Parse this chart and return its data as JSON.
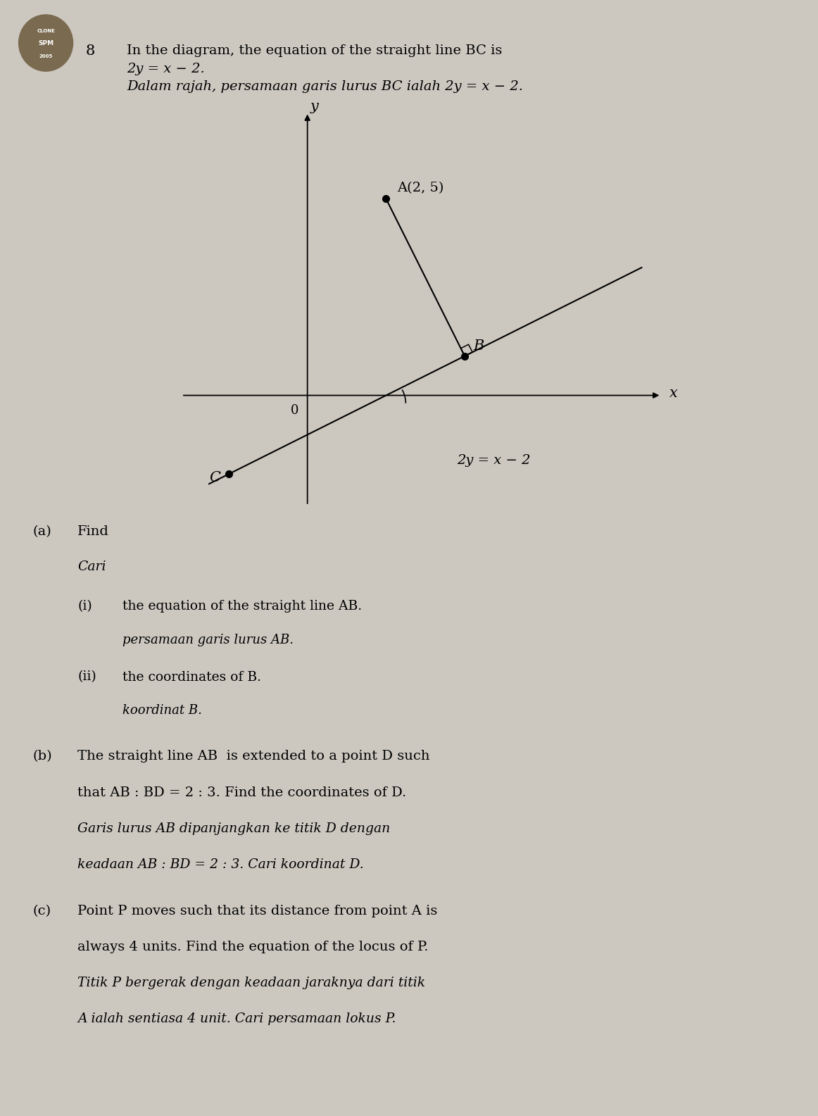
{
  "bg_color": "#ccc8c0",
  "fig_width": 11.62,
  "fig_height": 15.85,
  "header_number": "8",
  "header_en": "In the diagram, the equation of the straight line BC is",
  "header_eq": "2y = x − 2.",
  "header_ms": "Dalam rajah, persamaan garis lurus BC ialah 2y = x − 2.",
  "label_A": "A(2, 5)",
  "label_B": "B",
  "label_C": "C",
  "label_0": "0",
  "label_x": "x",
  "label_y": "y",
  "bc_eq_label": "2y = x − 2",
  "point_A": [
    2,
    5
  ],
  "point_B": [
    4,
    1
  ],
  "point_C": [
    -2,
    -2
  ],
  "q_a_en": "Find",
  "q_a_ms": "Cari",
  "q_ai_en": "the equation of the straight line AB.",
  "q_ai_ms": "persamaan garis lurus AB.",
  "q_aii_en": "the coordinates of B.",
  "q_aii_ms": "koordinat B.",
  "q_b_en1": "The straight line AB  is extended to a point D such",
  "q_b_en2": "that AB : BD = 2 : 3. Find the coordinates of D.",
  "q_b_ms1": "Garis lurus AB dipanjangkan ke titik D dengan",
  "q_b_ms2": "keadaan AB : BD = 2 : 3. Cari koordinat D.",
  "q_c_en1": "Point P moves such that its distance from point A is",
  "q_c_en2": "always 4 units. Find the equation of the locus of P.",
  "q_c_ms1": "Titik P bergerak dengan keadaan jaraknya dari titik",
  "q_c_ms2": "A ialah sentiasa 4 unit. Cari persamaan lokus P."
}
